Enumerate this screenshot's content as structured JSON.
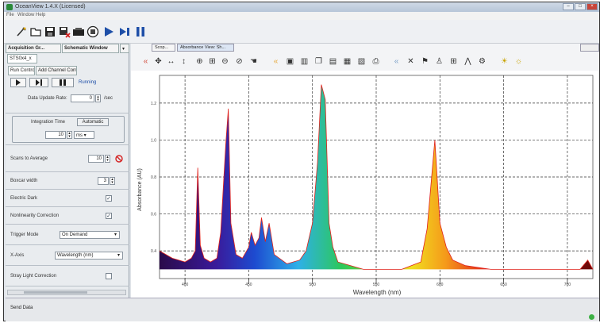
{
  "window": {
    "title": "OceanView 1.4.X (Licensed)"
  },
  "menu": {
    "items": [
      "File",
      "Window",
      "Help"
    ]
  },
  "sidebar": {
    "tabs": [
      "Acquisition Gr...",
      "Schematic Window"
    ],
    "device_tab": "STS0x4_x",
    "subtabs": [
      "Run Controls",
      "Add Channel Controls"
    ],
    "running_label": "Running",
    "data_update_rate_label": "Data Update Rate:",
    "data_update_rate_value": "0",
    "data_update_rate_unit": "/sec",
    "integration_time_label": "Integration Time",
    "automatic_label": "Automatic",
    "integration_time_value": "10",
    "integration_time_unit": "ms",
    "scans_to_average_label": "Scans to Average",
    "scans_to_average_value": "10",
    "boxcar_width_label": "Boxcar width",
    "boxcar_width_value": "3",
    "electric_dark_label": "Electric Dark",
    "nonlinearity_label": "Nonlinearity Correction",
    "trigger_mode_label": "Trigger Mode",
    "trigger_mode_value": "On Demand",
    "x_axis_label": "X-Axis",
    "x_axis_value": "Wavelength (nm)",
    "stray_light_label": "Stray Light Correction"
  },
  "plot": {
    "tabs": [
      "Scop...",
      "Absorbance View: Sh..."
    ],
    "y_ticks": [
      "1.2",
      "1.0",
      "0.8",
      "0.6",
      "0.4"
    ],
    "y_label": "Absorbance (AU)",
    "x_label": "Wavelength (nm)",
    "x_ticks": [
      "400",
      "450",
      "500",
      "550",
      "600",
      "650",
      "700"
    ]
  },
  "status": {
    "text": "Send Data"
  },
  "colors": {
    "accent": "#1e4fa8",
    "spectrum_red": "#e0201a"
  },
  "chart_data": {
    "type": "area",
    "title": "",
    "xlabel": "Wavelength (nm)",
    "ylabel": "Absorbance (AU)",
    "xlim": [
      380,
      720
    ],
    "ylim": [
      0.25,
      1.35
    ],
    "grid": true,
    "series": [
      {
        "x": [
          380,
          390,
          400,
          405,
          408,
          410,
          412,
          415,
          420,
          425,
          428,
          432,
          434,
          436,
          440,
          445,
          450,
          452,
          455,
          458,
          460,
          463,
          466,
          470,
          480,
          490,
          495,
          500,
          504,
          507,
          510,
          513,
          516,
          520,
          530,
          540,
          560,
          570,
          585,
          590,
          596,
          600,
          605,
          610,
          620,
          640,
          660,
          680,
          700,
          710,
          716,
          720
        ],
        "y": [
          0.4,
          0.36,
          0.34,
          0.36,
          0.4,
          0.85,
          0.43,
          0.36,
          0.34,
          0.36,
          0.5,
          0.98,
          1.17,
          0.55,
          0.38,
          0.36,
          0.42,
          0.5,
          0.43,
          0.47,
          0.58,
          0.45,
          0.55,
          0.38,
          0.33,
          0.35,
          0.4,
          0.55,
          0.88,
          1.3,
          1.22,
          0.55,
          0.42,
          0.34,
          0.32,
          0.3,
          0.3,
          0.3,
          0.34,
          0.52,
          1.0,
          0.55,
          0.42,
          0.35,
          0.32,
          0.3,
          0.3,
          0.3,
          0.3,
          0.3,
          0.35,
          0.3
        ]
      }
    ]
  }
}
